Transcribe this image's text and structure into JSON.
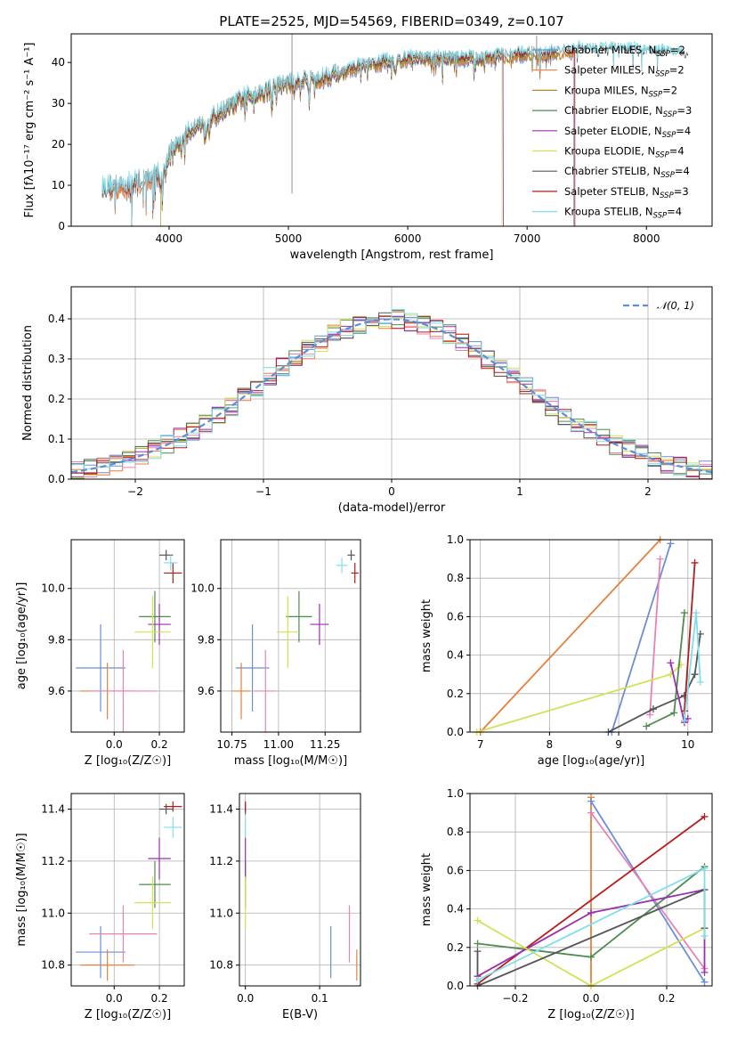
{
  "chart_data": [
    {
      "id": "spectrum",
      "type": "line",
      "title": "PLATE=2525, MJD=54569, FIBERID=0349, z=0.107",
      "xlabel": "wavelength [Angstrom, rest frame]",
      "ylabel": "Flux [fλ10⁻¹⁷ erg cm⁻² s⁻¹ A⁻¹]",
      "xlim": [
        3180,
        8550
      ],
      "ylim": [
        0,
        47
      ],
      "xticks": [
        4000,
        5000,
        6000,
        7000,
        8000
      ],
      "yticks": [
        0,
        10,
        20,
        30,
        40
      ],
      "grid": false,
      "legend_position": "upper-right",
      "continuum": {
        "x": [
          3440,
          3600,
          3800,
          3930,
          4000,
          4200,
          4400,
          4600,
          4800,
          5000,
          5200,
          5400,
          5600,
          5800,
          6000,
          6200,
          6400,
          6600,
          6800,
          7000,
          7200,
          7400,
          7600,
          7800,
          8000,
          8200,
          8300
        ],
        "y": [
          9,
          9.5,
          11,
          13,
          18,
          24,
          27,
          31,
          33,
          35,
          36,
          37,
          39,
          40,
          41,
          41,
          41,
          41,
          41.5,
          42,
          42,
          43,
          43,
          43,
          42.5,
          42,
          42
        ]
      },
      "series": [
        {
          "name": "Chabrier MILES, N_SSP=2",
          "color": "#6a8fd8",
          "range": [
            3500,
            7390
          ]
        },
        {
          "name": "Salpeter MILES, N_SSP=2",
          "color": "#e97f3c",
          "range": [
            3500,
            7400
          ]
        },
        {
          "name": "Kroupa MILES, N_SSP=2",
          "color": "#b8862a",
          "range": [
            3930,
            7400
          ]
        },
        {
          "name": "Chabrier ELODIE, N_SSP=3",
          "color": "#4f8a4f",
          "range": [
            3930,
            6800
          ]
        },
        {
          "name": "Salpeter ELODIE, N_SSP=4",
          "color": "#9b2fae",
          "range": [
            3930,
            6800
          ]
        },
        {
          "name": "Kroupa ELODIE, N_SSP=4",
          "color": "#d4e157",
          "range": [
            3930,
            6790
          ]
        },
        {
          "name": "Chabrier STELIB, N_SSP=4",
          "color": "#555555",
          "range": [
            3440,
            8350
          ]
        },
        {
          "name": "Salpeter STELIB, N_SSP=3",
          "color": "#b71c1c",
          "range": [
            3500,
            7400
          ]
        },
        {
          "name": "Kroupa STELIB, N_SSP=4",
          "color": "#80deea",
          "range": [
            3440,
            8300
          ]
        }
      ]
    },
    {
      "id": "residuals",
      "type": "line",
      "xlabel": "(data-model)/error",
      "ylabel": "Normed distribution",
      "xlim": [
        -2.5,
        2.5
      ],
      "ylim": [
        0,
        0.48
      ],
      "xticks": [
        -2,
        -1,
        0,
        1,
        2
      ],
      "yticks": [
        0.0,
        0.1,
        0.2,
        0.3,
        0.4
      ],
      "grid": true,
      "legend_position": "upper-right",
      "reference_label": "𝒩(0, 1)",
      "reference_color": "#5b8fd6",
      "bin_width": 0.1,
      "series_colors": [
        "#6a8fd8",
        "#e97f3c",
        "#e882b4",
        "#4f8a4f",
        "#9b2fae",
        "#d4e157",
        "#555555",
        "#b71c1c",
        "#80deea"
      ]
    },
    {
      "id": "age-vs-z",
      "type": "scatter",
      "xlabel": "Z [log₁₀(Z/Z☉)]",
      "ylabel": "age  [log₁₀(age/yr)]",
      "xlim": [
        -0.19,
        0.31
      ],
      "ylim": [
        9.44,
        10.19
      ],
      "xticks": [
        0.0,
        0.2
      ],
      "yticks": [
        9.6,
        9.8,
        10.0
      ],
      "grid": true,
      "points": [
        {
          "color": "#6a8fd8",
          "x": -0.06,
          "xerr": 0.11,
          "y": 9.69,
          "yerr": 0.17
        },
        {
          "color": "#e97f3c",
          "x": -0.03,
          "xerr": 0.12,
          "y": 9.6,
          "yerr": 0.11
        },
        {
          "color": "#e882b4",
          "x": 0.04,
          "xerr": 0.15,
          "y": 9.6,
          "yerr": 0.16
        },
        {
          "color": "#4f8a4f",
          "x": 0.18,
          "xerr": 0.07,
          "y": 9.89,
          "yerr": 0.1
        },
        {
          "color": "#9b2fae",
          "x": 0.2,
          "xerr": 0.05,
          "y": 9.86,
          "yerr": 0.08
        },
        {
          "color": "#d4e157",
          "x": 0.17,
          "xerr": 0.08,
          "y": 9.83,
          "yerr": 0.14
        },
        {
          "color": "#555555",
          "x": 0.23,
          "xerr": 0.03,
          "y": 10.13,
          "yerr": 0.02
        },
        {
          "color": "#b71c1c",
          "x": 0.26,
          "xerr": 0.04,
          "y": 10.06,
          "yerr": 0.04
        },
        {
          "color": "#80deea",
          "x": 0.25,
          "xerr": 0.03,
          "y": 10.1,
          "yerr": 0.03
        }
      ]
    },
    {
      "id": "age-vs-mass",
      "type": "scatter",
      "xlabel": "mass [log₁₀(M/M☉)]",
      "ylabel": "",
      "xlim": [
        10.69,
        11.44
      ],
      "ylim": [
        9.44,
        10.19
      ],
      "xticks": [
        10.75,
        11.0,
        11.25
      ],
      "yticks": [
        9.6,
        9.8,
        10.0
      ],
      "grid": true,
      "points": [
        {
          "color": "#6a8fd8",
          "x": 10.86,
          "xerr": 0.09,
          "y": 9.69,
          "yerr": 0.17
        },
        {
          "color": "#e97f3c",
          "x": 10.8,
          "xerr": 0.05,
          "y": 9.6,
          "yerr": 0.11
        },
        {
          "color": "#e882b4",
          "x": 10.93,
          "xerr": 0.06,
          "y": 9.6,
          "yerr": 0.16
        },
        {
          "color": "#4f8a4f",
          "x": 11.11,
          "xerr": 0.07,
          "y": 9.89,
          "yerr": 0.1
        },
        {
          "color": "#9b2fae",
          "x": 11.22,
          "xerr": 0.05,
          "y": 9.86,
          "yerr": 0.08
        },
        {
          "color": "#d4e157",
          "x": 11.05,
          "xerr": 0.06,
          "y": 9.83,
          "yerr": 0.14
        },
        {
          "color": "#555555",
          "x": 11.39,
          "xerr": 0.02,
          "y": 10.13,
          "yerr": 0.02
        },
        {
          "color": "#b71c1c",
          "x": 11.41,
          "xerr": 0.02,
          "y": 10.06,
          "yerr": 0.04
        },
        {
          "color": "#80deea",
          "x": 11.34,
          "xerr": 0.03,
          "y": 10.09,
          "yerr": 0.03
        }
      ]
    },
    {
      "id": "mass-weight-vs-age",
      "type": "line",
      "xlabel": "age  [log₁₀(age/yr)]",
      "ylabel": "mass weight",
      "xlim": [
        6.85,
        10.35
      ],
      "ylim": [
        0,
        1
      ],
      "xticks": [
        7,
        8,
        9,
        10
      ],
      "yticks": [
        0.0,
        0.2,
        0.4,
        0.6,
        0.8,
        1.0
      ],
      "grid": true,
      "series": [
        {
          "color": "#e97f3c",
          "x": [
            7.0,
            9.6
          ],
          "y": [
            0.0,
            1.0
          ]
        },
        {
          "color": "#6a8fd8",
          "x": [
            8.9,
            9.75
          ],
          "y": [
            0.0,
            0.98
          ]
        },
        {
          "color": "#e882b4",
          "x": [
            9.45,
            9.6
          ],
          "y": [
            0.09,
            0.9
          ]
        },
        {
          "color": "#d4e157",
          "x": [
            6.95,
            9.75,
            9.9
          ],
          "y": [
            0.0,
            0.3,
            0.35
          ]
        },
        {
          "color": "#555555",
          "x": [
            8.85,
            9.5,
            9.95,
            10.1,
            10.18
          ],
          "y": [
            0.0,
            0.12,
            0.19,
            0.3,
            0.51
          ]
        },
        {
          "color": "#4f8a4f",
          "x": [
            9.4,
            9.8,
            9.95
          ],
          "y": [
            0.03,
            0.1,
            0.62
          ]
        },
        {
          "color": "#9b2fae",
          "x": [
            9.75,
            9.95,
            10.0
          ],
          "y": [
            0.36,
            0.05,
            0.07
          ]
        },
        {
          "color": "#b71c1c",
          "x": [
            9.95,
            10.1
          ],
          "y": [
            0.11,
            0.88
          ]
        },
        {
          "color": "#80deea",
          "x": [
            9.95,
            10.12,
            10.18
          ],
          "y": [
            0.06,
            0.62,
            0.26
          ]
        }
      ]
    },
    {
      "id": "mass-vs-z",
      "type": "scatter",
      "xlabel": "Z [log₁₀(Z/Z☉)]",
      "ylabel": "mass [log₁₀(M/M☉)]",
      "xlim": [
        -0.19,
        0.31
      ],
      "ylim": [
        10.72,
        11.46
      ],
      "xticks": [
        0.0,
        0.2
      ],
      "yticks": [
        10.8,
        11.0,
        11.2,
        11.4
      ],
      "grid": true,
      "points": [
        {
          "color": "#6a8fd8",
          "x": -0.06,
          "xerr": 0.11,
          "y": 10.85,
          "yerr": 0.1
        },
        {
          "color": "#e97f3c",
          "x": -0.03,
          "xerr": 0.12,
          "y": 10.8,
          "yerr": 0.06
        },
        {
          "color": "#e882b4",
          "x": 0.04,
          "xerr": 0.15,
          "y": 10.92,
          "yerr": 0.11
        },
        {
          "color": "#4f8a4f",
          "x": 0.18,
          "xerr": 0.07,
          "y": 11.11,
          "yerr": 0.09
        },
        {
          "color": "#9b2fae",
          "x": 0.2,
          "xerr": 0.05,
          "y": 11.21,
          "yerr": 0.08
        },
        {
          "color": "#d4e157",
          "x": 0.17,
          "xerr": 0.08,
          "y": 11.04,
          "yerr": 0.1
        },
        {
          "color": "#555555",
          "x": 0.23,
          "xerr": 0.03,
          "y": 11.4,
          "yerr": 0.02
        },
        {
          "color": "#b71c1c",
          "x": 0.26,
          "xerr": 0.04,
          "y": 11.41,
          "yerr": 0.02
        },
        {
          "color": "#80deea",
          "x": 0.26,
          "xerr": 0.04,
          "y": 11.33,
          "yerr": 0.04
        }
      ]
    },
    {
      "id": "mass-vs-ebv",
      "type": "scatter",
      "xlabel": "E(B-V)",
      "ylabel": "",
      "xlim": [
        -0.008,
        0.155
      ],
      "ylim": [
        10.72,
        11.46
      ],
      "xticks": [
        0.0,
        0.1
      ],
      "yticks": [
        10.8,
        11.0,
        11.2,
        11.4
      ],
      "grid": true,
      "points": [
        {
          "color": "#6a8fd8",
          "x": 0.115,
          "xerr": 0,
          "y": 10.85,
          "yerr": 0.1
        },
        {
          "color": "#e97f3c",
          "x": 0.15,
          "xerr": 0,
          "y": 10.8,
          "yerr": 0.06
        },
        {
          "color": "#e882b4",
          "x": 0.14,
          "xerr": 0,
          "y": 10.92,
          "yerr": 0.11
        },
        {
          "color": "#4f8a4f",
          "x": 0.0,
          "xerr": 0,
          "y": 11.11,
          "yerr": 0.09
        },
        {
          "color": "#9b2fae",
          "x": 0.0,
          "xerr": 0,
          "y": 11.21,
          "yerr": 0.08
        },
        {
          "color": "#d4e157",
          "x": 0.0,
          "xerr": 0,
          "y": 11.04,
          "yerr": 0.1
        },
        {
          "color": "#555555",
          "x": 0.0,
          "xerr": 0,
          "y": 11.4,
          "yerr": 0.02
        },
        {
          "color": "#b71c1c",
          "x": 0.0,
          "xerr": 0,
          "y": 11.41,
          "yerr": 0.02
        },
        {
          "color": "#80deea",
          "x": 0.0,
          "xerr": 0,
          "y": 11.33,
          "yerr": 0.04
        }
      ]
    },
    {
      "id": "mass-weight-vs-z",
      "type": "line",
      "xlabel": "Z [log₁₀(Z/Z☉)]",
      "ylabel": "mass weight",
      "xlim": [
        -0.32,
        0.32
      ],
      "ylim": [
        0,
        1
      ],
      "xticks": [
        -0.2,
        0.0,
        0.2
      ],
      "yticks": [
        0.0,
        0.2,
        0.4,
        0.6,
        0.8,
        1.0
      ],
      "grid": true,
      "series": [
        {
          "color": "#e97f3c",
          "x": [
            0.0,
            0.0
          ],
          "y": [
            0.0,
            0.98
          ]
        },
        {
          "color": "#6a8fd8",
          "x": [
            0.0,
            0.3
          ],
          "y": [
            0.96,
            0.02
          ]
        },
        {
          "color": "#e882b4",
          "x": [
            0.0,
            0.3
          ],
          "y": [
            0.9,
            0.09
          ]
        },
        {
          "color": "#b71c1c",
          "x": [
            -0.3,
            0.3
          ],
          "y": [
            0.01,
            0.88
          ]
        },
        {
          "color": "#4f8a4f",
          "x": [
            -0.3,
            0.0,
            0.3
          ],
          "y": [
            0.22,
            0.15,
            0.62
          ]
        },
        {
          "color": "#9b2fae",
          "x": [
            -0.3,
            0.0,
            0.3,
            0.3
          ],
          "y": [
            0.05,
            0.38,
            0.5,
            0.07
          ]
        },
        {
          "color": "#d4e157",
          "x": [
            -0.3,
            0.0,
            0.3
          ],
          "y": [
            0.34,
            0.0,
            0.3
          ]
        },
        {
          "color": "#555555",
          "x": [
            -0.3,
            -0.3,
            0.3,
            0.3
          ],
          "y": [
            0.18,
            0.0,
            0.5,
            0.3
          ]
        },
        {
          "color": "#80deea",
          "x": [
            -0.3,
            0.3,
            0.3
          ],
          "y": [
            0.03,
            0.61,
            0.26
          ]
        }
      ]
    }
  ]
}
